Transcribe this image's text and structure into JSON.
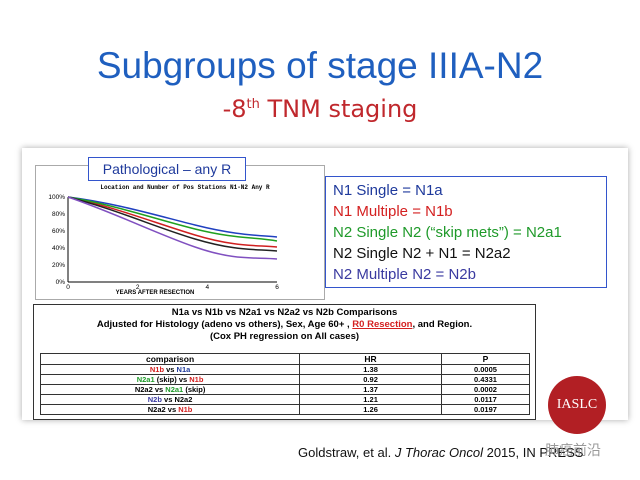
{
  "title": "Subgroups of stage IIIA-N2",
  "subtitle": {
    "prefix": "-8",
    "sup": "th",
    "rest": " TNM staging"
  },
  "figure": {
    "label": "Pathological – any R",
    "chart_title": "Location and Number of Pos Stations N1-N2 Any R",
    "yticks": [
      "100%",
      "80%",
      "60%",
      "40%",
      "20%",
      "0%"
    ],
    "xticks": [
      "0",
      "2",
      "4",
      "6"
    ],
    "xlabel": "YEARS AFTER RESECTION"
  },
  "legend_box": [
    {
      "text": "N1 Single = N1a",
      "color": "#1f3a9c"
    },
    {
      "text": "N1 Multiple = N1b",
      "color": "#d42020"
    },
    {
      "text": "N2 Single N2 (“skip mets”) = N2a1",
      "color": "#1f9a2a"
    },
    {
      "text": "N2 Single N2 + N1 =  N2a2",
      "color": "#111111"
    },
    {
      "text": "N2 Multiple N2 = N2b",
      "color": "#3a3aa0"
    }
  ],
  "table": {
    "title_lines": [
      [
        {
          "text": "N1a vs N1b vs N2a1 vs N2a2 vs N2b Comparisons"
        }
      ],
      [
        {
          "text": "Adjusted for Histology (adeno vs others), Sex,  Age 60+ , "
        },
        {
          "text": "R0 Resection",
          "color": "#d42020"
        },
        {
          "text": ", and Region."
        }
      ],
      [
        {
          "text": "(Cox PH regression on All cases)"
        }
      ]
    ],
    "header": [
      "comparison",
      "HR",
      "P"
    ],
    "rows": [
      [
        [
          {
            "text": "N1b",
            "color": "#d42020"
          },
          {
            "text": " vs "
          },
          {
            "text": "N1a",
            "color": "#1f3a9c"
          }
        ],
        "1.38",
        "0.0005"
      ],
      [
        [
          {
            "text": "N2a1",
            "color": "#1f9a2a"
          },
          {
            "text": " (skip) vs "
          },
          {
            "text": "N1b",
            "color": "#d42020"
          }
        ],
        "0.92",
        "0.4331"
      ],
      [
        [
          {
            "text": "N2a2 vs "
          },
          {
            "text": "N2a1",
            "color": "#1f9a2a"
          },
          {
            "text": " (skip)"
          }
        ],
        "1.37",
        "0.0002"
      ],
      [
        [
          {
            "text": "N2b",
            "color": "#3a3aa0"
          },
          {
            "text": " vs N2a2"
          }
        ],
        "1.21",
        "0.0117"
      ],
      [
        [
          {
            "text": "N2a2 vs "
          },
          {
            "text": "N1b",
            "color": "#d42020"
          }
        ],
        "1.26",
        "0.0197"
      ]
    ]
  },
  "citation": {
    "authors": "Goldstraw, et al. ",
    "journal": "J Thorac Oncol",
    "rest": " 2015, IN PRESS"
  },
  "badge": "IASLC",
  "watermark": "肺癌前沿"
}
